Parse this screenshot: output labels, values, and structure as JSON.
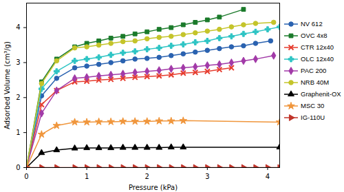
{
  "chart_data": {
    "type": "line",
    "x_label": "Pressure (kPa)",
    "y_label": "Adsorbed Volume (cm³/g)",
    "xlim": [
      0,
      4.2
    ],
    "ylim": [
      0,
      4.7
    ],
    "xticks": [
      0,
      1,
      2,
      3,
      4
    ],
    "yticks": [
      0,
      1,
      2,
      3,
      4
    ],
    "grid": false,
    "legend": "right",
    "series": [
      {
        "name": "NV 612",
        "color": "#2a62b0",
        "marker": "circle",
        "x": [
          0,
          0.25,
          0.5,
          0.8,
          1.0,
          1.2,
          1.4,
          1.6,
          1.8,
          2.0,
          2.2,
          2.4,
          2.6,
          2.8,
          3.0,
          3.2,
          3.4,
          3.6,
          3.8,
          4.05
        ],
        "values": [
          0,
          2.05,
          2.55,
          2.85,
          2.9,
          2.95,
          3.0,
          3.05,
          3.1,
          3.12,
          3.15,
          3.2,
          3.25,
          3.3,
          3.35,
          3.4,
          3.45,
          3.48,
          3.55,
          3.62
        ]
      },
      {
        "name": "OVC 4x8",
        "color": "#1a7a2a",
        "marker": "square",
        "x": [
          0,
          0.25,
          0.5,
          0.8,
          1.0,
          1.2,
          1.4,
          1.6,
          1.8,
          2.0,
          2.2,
          2.4,
          2.6,
          2.8,
          3.0,
          3.2,
          3.6
        ],
        "values": [
          0,
          2.45,
          3.1,
          3.45,
          3.55,
          3.62,
          3.7,
          3.75,
          3.82,
          3.88,
          3.95,
          4.0,
          4.08,
          4.15,
          4.22,
          4.3,
          4.52
        ]
      },
      {
        "name": "CTR 12x40",
        "color": "#e63c2e",
        "marker": "times",
        "x": [
          0,
          0.25,
          0.5,
          0.8,
          1.0,
          1.2,
          1.4,
          1.6,
          1.8,
          2.0,
          2.2,
          2.4,
          2.6,
          2.8,
          3.0,
          3.2,
          3.4
        ],
        "values": [
          0,
          1.8,
          2.2,
          2.45,
          2.47,
          2.5,
          2.52,
          2.55,
          2.58,
          2.6,
          2.62,
          2.65,
          2.7,
          2.72,
          2.75,
          2.8,
          2.85
        ]
      },
      {
        "name": "OLC 12x40",
        "color": "#2ec4c4",
        "marker": "cross",
        "x": [
          0,
          0.25,
          0.5,
          0.8,
          1.0,
          1.2,
          1.4,
          1.6,
          1.8,
          2.0,
          2.2,
          2.4,
          2.6,
          2.8,
          3.0,
          3.2,
          3.4,
          3.6,
          3.8,
          4.0,
          4.2
        ],
        "values": [
          0,
          2.25,
          2.75,
          3.05,
          3.1,
          3.15,
          3.22,
          3.28,
          3.32,
          3.38,
          3.42,
          3.48,
          3.52,
          3.58,
          3.62,
          3.7,
          3.75,
          3.82,
          3.88,
          3.95,
          4.02
        ]
      },
      {
        "name": "PAC 200",
        "color": "#a23aa8",
        "marker": "diamond",
        "x": [
          0,
          0.25,
          0.5,
          0.8,
          1.0,
          1.2,
          1.4,
          1.6,
          1.8,
          2.0,
          2.2,
          2.4,
          2.6,
          2.8,
          3.0,
          3.2,
          3.4,
          3.6,
          3.8,
          4.1
        ],
        "values": [
          0,
          1.55,
          2.2,
          2.55,
          2.58,
          2.62,
          2.65,
          2.68,
          2.72,
          2.75,
          2.78,
          2.82,
          2.85,
          2.88,
          2.92,
          2.95,
          3.0,
          3.05,
          3.1,
          3.2
        ]
      },
      {
        "name": "NRB 40M",
        "color": "#c4c42a",
        "marker": "circle",
        "x": [
          0,
          0.25,
          0.5,
          0.8,
          1.0,
          1.2,
          1.4,
          1.6,
          1.8,
          2.0,
          2.2,
          2.4,
          2.6,
          2.8,
          3.0,
          3.2,
          3.4,
          3.6,
          3.8,
          4.1
        ],
        "values": [
          0,
          2.4,
          3.05,
          3.42,
          3.45,
          3.5,
          3.55,
          3.6,
          3.62,
          3.68,
          3.72,
          3.75,
          3.8,
          3.85,
          3.9,
          3.95,
          4.02,
          4.08,
          4.12,
          4.15
        ]
      },
      {
        "name": "Graphenit-OX",
        "color": "#000000",
        "marker": "triangle",
        "x": [
          0,
          0.25,
          0.5,
          0.8,
          1.0,
          1.2,
          1.4,
          1.6,
          1.8,
          2.0,
          2.2,
          2.4,
          2.6,
          4.2
        ],
        "values": [
          0,
          0.42,
          0.5,
          0.55,
          0.56,
          0.56,
          0.56,
          0.57,
          0.57,
          0.57,
          0.57,
          0.58,
          0.58,
          0.58
        ]
      },
      {
        "name": "MSC 30",
        "color": "#f0963c",
        "marker": "star",
        "x": [
          0,
          0.25,
          0.5,
          0.8,
          1.0,
          1.2,
          1.4,
          1.6,
          1.8,
          2.0,
          2.2,
          2.4,
          2.6,
          4.2
        ],
        "values": [
          0,
          0.95,
          1.2,
          1.3,
          1.3,
          1.31,
          1.31,
          1.32,
          1.32,
          1.32,
          1.33,
          1.33,
          1.34,
          1.3
        ]
      },
      {
        "name": "IG-110U",
        "color": "#c0342a",
        "marker": "triangle-right",
        "x": [
          0,
          0.25,
          0.5,
          0.8,
          1.0,
          1.2,
          1.4,
          1.6,
          1.8,
          2.0,
          2.2,
          2.4,
          2.6,
          2.8,
          3.0,
          3.2,
          3.4,
          3.6,
          3.8,
          4.0,
          4.2
        ],
        "values": [
          0,
          0,
          0,
          0,
          0,
          0,
          0,
          0,
          0,
          0,
          0,
          0,
          0,
          0,
          0,
          0,
          0,
          0,
          0,
          0,
          0
        ]
      }
    ]
  }
}
